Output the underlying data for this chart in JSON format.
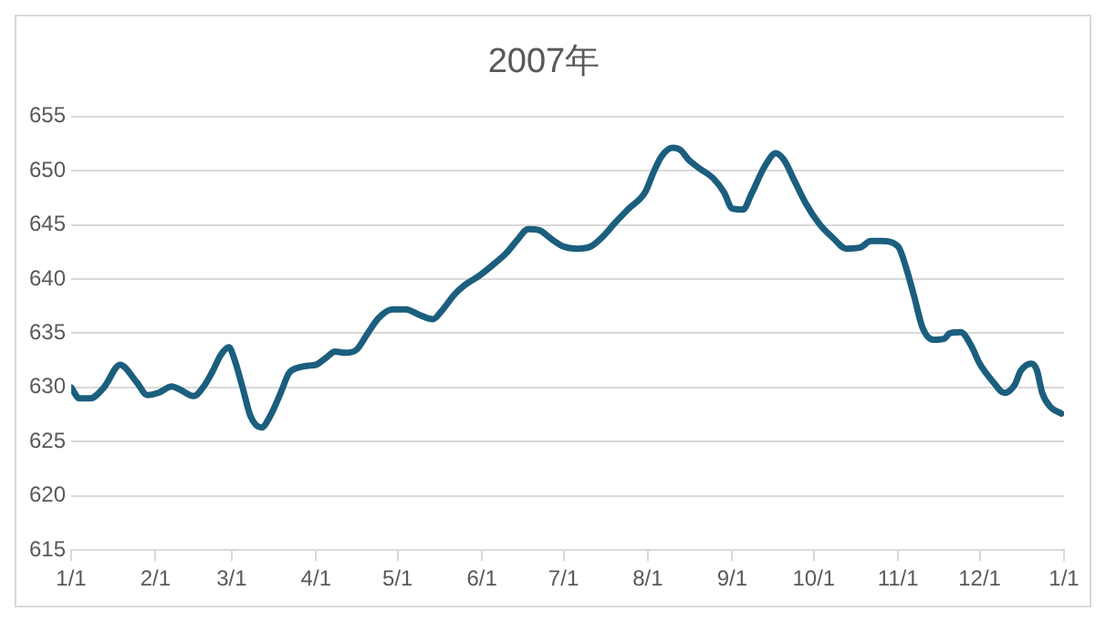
{
  "chart_data": {
    "type": "line",
    "title": "2007年",
    "x": [
      "2007-01-01",
      "2007-01-04",
      "2007-01-08",
      "2007-01-13",
      "2007-01-19",
      "2007-01-25",
      "2007-01-29",
      "2007-02-02",
      "2007-02-07",
      "2007-02-10",
      "2007-02-15",
      "2007-02-19",
      "2007-02-22",
      "2007-02-25",
      "2007-02-28",
      "2007-03-02",
      "2007-03-05",
      "2007-03-08",
      "2007-03-12",
      "2007-03-15",
      "2007-03-19",
      "2007-03-22",
      "2007-03-25",
      "2007-03-29",
      "2007-04-01",
      "2007-04-05",
      "2007-04-08",
      "2007-04-12",
      "2007-04-16",
      "2007-04-20",
      "2007-04-24",
      "2007-04-29",
      "2007-05-04",
      "2007-05-09",
      "2007-05-14",
      "2007-05-17",
      "2007-05-22",
      "2007-05-26",
      "2007-05-31",
      "2007-06-05",
      "2007-06-10",
      "2007-06-14",
      "2007-06-18",
      "2007-06-22",
      "2007-06-27",
      "2007-07-01",
      "2007-07-06",
      "2007-07-11",
      "2007-07-15",
      "2007-07-20",
      "2007-07-25",
      "2007-07-31",
      "2007-08-03",
      "2007-08-06",
      "2007-08-10",
      "2007-08-13",
      "2007-08-16",
      "2007-08-20",
      "2007-08-25",
      "2007-08-29",
      "2007-09-01",
      "2007-09-05",
      "2007-09-08",
      "2007-09-13",
      "2007-09-17",
      "2007-09-20",
      "2007-09-24",
      "2007-09-28",
      "2007-10-03",
      "2007-10-08",
      "2007-10-13",
      "2007-10-18",
      "2007-10-22",
      "2007-10-26",
      "2007-11-01",
      "2007-11-04",
      "2007-11-07",
      "2007-11-10",
      "2007-11-14",
      "2007-11-18",
      "2007-11-20",
      "2007-11-24",
      "2007-11-28",
      "2007-12-01",
      "2007-12-06",
      "2007-12-10",
      "2007-12-14",
      "2007-12-16",
      "2007-12-20",
      "2007-12-22",
      "2007-12-24",
      "2007-12-27",
      "2007-12-31"
    ],
    "series": [
      {
        "color": "#1b5e7e",
        "values": [
          630,
          629,
          629,
          630,
          632.1,
          630.5,
          629.3,
          629.5,
          630.1,
          629.8,
          629.2,
          630.2,
          631.5,
          633,
          633.7,
          632.6,
          630,
          627.3,
          626.3,
          627.3,
          629.5,
          631.3,
          631.8,
          632,
          632.1,
          632.8,
          633.3,
          633.2,
          633.5,
          635,
          636.4,
          637.2,
          637.2,
          636.7,
          636.3,
          637,
          638.6,
          639.5,
          640.3,
          641.3,
          642.4,
          643.6,
          644.6,
          644.5,
          643.6,
          643,
          642.8,
          643,
          643.8,
          645.2,
          646.5,
          648,
          649.8,
          651.3,
          652.1,
          651.9,
          651,
          650.2,
          649.3,
          648,
          646.5,
          646.4,
          647.8,
          650.4,
          651.6,
          651,
          649,
          647,
          645.1,
          643.8,
          642.8,
          642.9,
          643.5,
          643.5,
          643,
          641,
          638.3,
          635.5,
          634.4,
          634.5,
          635,
          635.1,
          633.8,
          632.2,
          630.5,
          629.5,
          630.3,
          631.5,
          632.2,
          631.6,
          629.5,
          628.2,
          627.6
        ]
      }
    ],
    "xlim": [
      "2007-01-01",
      "2008-01-01"
    ],
    "xticks": [
      {
        "value": "2007-01-01",
        "label": "1/1"
      },
      {
        "value": "2007-02-01",
        "label": "2/1"
      },
      {
        "value": "2007-03-01",
        "label": "3/1"
      },
      {
        "value": "2007-04-01",
        "label": "4/1"
      },
      {
        "value": "2007-05-01",
        "label": "5/1"
      },
      {
        "value": "2007-06-01",
        "label": "6/1"
      },
      {
        "value": "2007-07-01",
        "label": "7/1"
      },
      {
        "value": "2007-08-01",
        "label": "8/1"
      },
      {
        "value": "2007-09-01",
        "label": "9/1"
      },
      {
        "value": "2007-10-01",
        "label": "10/1"
      },
      {
        "value": "2007-11-01",
        "label": "11/1"
      },
      {
        "value": "2007-12-01",
        "label": "12/1"
      },
      {
        "value": "2008-01-01",
        "label": "1/1"
      }
    ],
    "ylim": [
      615,
      655
    ],
    "yticks": [
      615,
      620,
      625,
      630,
      635,
      640,
      645,
      650,
      655
    ],
    "grid": "y",
    "legend": false,
    "marker": "none",
    "line_style": "solid"
  }
}
